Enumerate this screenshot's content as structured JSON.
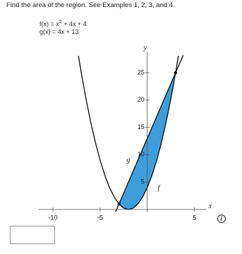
{
  "question": "Find the area of the region. See Examples 1, 2, 3, and 4.",
  "f_def": {
    "name": "f(x)",
    "equals": "=",
    "base": "x",
    "exponent": "2",
    "rest": "+ 4x + 4"
  },
  "g_def": {
    "name": "g(x)",
    "equals": "=",
    "expression": "4x + 13"
  },
  "chart_data": {
    "type": "line",
    "x_label": "x",
    "y_label": "y",
    "xlim": [
      -11.5,
      6.9
    ],
    "ylim": [
      -0.4,
      30.3
    ],
    "xticks": [
      -10,
      -5,
      5
    ],
    "yticks": [
      5,
      10,
      15,
      20,
      25
    ],
    "series": [
      {
        "name": "f",
        "color": "#111111",
        "x": [
          -7.3,
          -7,
          -6.5,
          -6,
          -5.5,
          -5,
          -4.5,
          -4,
          -3.5,
          -3,
          -2.5,
          -2,
          -1.5,
          -1,
          -0.5,
          0,
          0.5,
          1,
          1.5,
          2,
          2.5,
          3,
          3.3
        ],
        "values": [
          28.09,
          25,
          20.25,
          16,
          12.25,
          9,
          6.25,
          4,
          2.25,
          1,
          0.25,
          0,
          0.25,
          1,
          2.25,
          4,
          6.25,
          9,
          12.25,
          16,
          20.25,
          25,
          28.09
        ]
      },
      {
        "name": "g",
        "color": "#111111",
        "x": [
          -3.5,
          3.8
        ],
        "values": [
          -1,
          28.2
        ]
      }
    ],
    "region_color": "#3d9ddb"
  }
}
